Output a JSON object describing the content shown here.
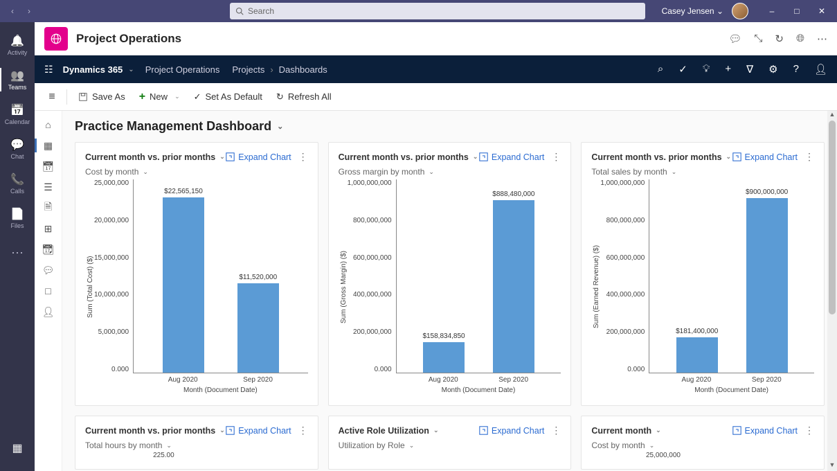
{
  "titlebar": {
    "search_placeholder": "Search",
    "user_name": "Casey Jensen"
  },
  "left_rail": {
    "items": [
      {
        "label": "Activity",
        "icon": "bell"
      },
      {
        "label": "Teams",
        "icon": "teams",
        "active": true
      },
      {
        "label": "Calendar",
        "icon": "calendar"
      },
      {
        "label": "Chat",
        "icon": "chat"
      },
      {
        "label": "Calls",
        "icon": "calls"
      },
      {
        "label": "Files",
        "icon": "files"
      }
    ]
  },
  "app_header": {
    "title": "Project Operations"
  },
  "dyn_nav": {
    "brand": "Dynamics 365",
    "app": "Project Operations",
    "crumbs": [
      "Projects",
      "Dashboards"
    ]
  },
  "cmd_bar": {
    "save_as": "Save As",
    "new": "New",
    "set_default": "Set As Default",
    "refresh": "Refresh All"
  },
  "page": {
    "title": "Practice Management Dashboard"
  },
  "charts": {
    "expand_label": "Expand Chart",
    "bar_color": "#5b9bd5",
    "x_axis_label": "Month (Document Date)",
    "cost": {
      "header": "Current month vs. prior months",
      "subtitle": "Cost by month",
      "y_axis_label": "Sum (Total Cost) ($)",
      "y_max": 25000000,
      "y_ticks": [
        "25,000,000",
        "20,000,000",
        "15,000,000",
        "10,000,000",
        "5,000,000",
        "0.000"
      ],
      "bars": [
        {
          "label": "$22,565,150",
          "value": 22565150,
          "x": "Aug 2020"
        },
        {
          "label": "$11,520,000",
          "value": 11520000,
          "x": "Sep 2020"
        }
      ]
    },
    "margin": {
      "header": "Current month vs. prior months",
      "subtitle": "Gross margin by month",
      "y_axis_label": "Sum (Gross Margin) ($)",
      "y_max": 1000000000,
      "y_ticks": [
        "1,000,000,000",
        "800,000,000",
        "600,000,000",
        "400,000,000",
        "200,000,000",
        "0.000"
      ],
      "bars": [
        {
          "label": "$158,834,850",
          "value": 158834850,
          "x": "Aug 2020"
        },
        {
          "label": "$888,480,000",
          "value": 888480000,
          "x": "Sep 2020"
        }
      ]
    },
    "sales": {
      "header": "Current month vs. prior months",
      "subtitle": "Total sales by month",
      "y_axis_label": "Sum (Earned Revenue) ($)",
      "y_max": 1000000000,
      "y_ticks": [
        "1,000,000,000",
        "800,000,000",
        "600,000,000",
        "400,000,000",
        "200,000,000",
        "0.000"
      ],
      "bars": [
        {
          "label": "$181,400,000",
          "value": 181400000,
          "x": "Aug 2020"
        },
        {
          "label": "$900,000,000",
          "value": 900000000,
          "x": "Sep 2020"
        }
      ]
    },
    "row2": [
      {
        "header": "Current month vs. prior months",
        "subtitle": "Total hours by month",
        "extra": "225.00"
      },
      {
        "header": "Active Role Utilization",
        "subtitle": "Utilization by Role",
        "extra": ""
      },
      {
        "header": "Current month",
        "subtitle": "Cost by month",
        "extra": "25,000,000"
      }
    ]
  }
}
